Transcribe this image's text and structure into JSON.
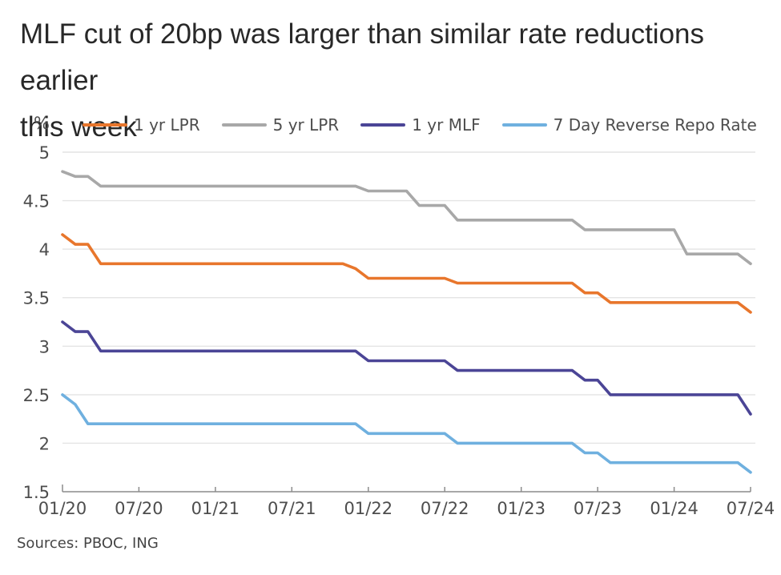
{
  "title": {
    "line1": "MLF cut of 20bp was larger than similar rate reductions earlier",
    "line2": "this week"
  },
  "source": "Sources: PBOC, ING",
  "chart_data": {
    "type": "line",
    "title": "MLF cut of 20bp was larger than similar rate reductions earlier this week",
    "ylabel": "%",
    "xlabel": "",
    "ylim": [
      1.5,
      5
    ],
    "yticks": [
      1.5,
      2,
      2.5,
      3,
      3.5,
      4,
      4.5,
      5
    ],
    "grid": "horizontal",
    "legend_position": "top",
    "x_frequency": "monthly",
    "x_start": "01/20",
    "x_end": "07/24",
    "xticks": [
      0,
      6,
      12,
      18,
      24,
      30,
      36,
      42,
      48,
      54
    ],
    "xtick_labels": [
      "01/20",
      "07/20",
      "01/21",
      "07/21",
      "01/22",
      "07/22",
      "01/23",
      "07/23",
      "01/24",
      "07/24"
    ],
    "colors": {
      "grid": "#e4e4e4",
      "axis": "#8c8c8c",
      "tick_text": "#4d4d4d"
    },
    "series": [
      {
        "id": "1yr-lpr",
        "name": "1 yr LPR",
        "color": "#e8762c",
        "values": [
          4.15,
          4.05,
          4.05,
          3.85,
          3.85,
          3.85,
          3.85,
          3.85,
          3.85,
          3.85,
          3.85,
          3.85,
          3.85,
          3.85,
          3.85,
          3.85,
          3.85,
          3.85,
          3.85,
          3.85,
          3.85,
          3.85,
          3.85,
          3.8,
          3.7,
          3.7,
          3.7,
          3.7,
          3.7,
          3.7,
          3.7,
          3.65,
          3.65,
          3.65,
          3.65,
          3.65,
          3.65,
          3.65,
          3.65,
          3.65,
          3.65,
          3.55,
          3.55,
          3.45,
          3.45,
          3.45,
          3.45,
          3.45,
          3.45,
          3.45,
          3.45,
          3.45,
          3.45,
          3.45,
          3.35
        ]
      },
      {
        "id": "5yr-lpr",
        "name": "5 yr LPR",
        "color": "#a8a8a8",
        "values": [
          4.8,
          4.75,
          4.75,
          4.65,
          4.65,
          4.65,
          4.65,
          4.65,
          4.65,
          4.65,
          4.65,
          4.65,
          4.65,
          4.65,
          4.65,
          4.65,
          4.65,
          4.65,
          4.65,
          4.65,
          4.65,
          4.65,
          4.65,
          4.65,
          4.6,
          4.6,
          4.6,
          4.6,
          4.45,
          4.45,
          4.45,
          4.3,
          4.3,
          4.3,
          4.3,
          4.3,
          4.3,
          4.3,
          4.3,
          4.3,
          4.3,
          4.2,
          4.2,
          4.2,
          4.2,
          4.2,
          4.2,
          4.2,
          4.2,
          3.95,
          3.95,
          3.95,
          3.95,
          3.95,
          3.85
        ]
      },
      {
        "id": "1yr-mlf",
        "name": "1 yr MLF",
        "color": "#4b4596",
        "values": [
          3.25,
          3.15,
          3.15,
          2.95,
          2.95,
          2.95,
          2.95,
          2.95,
          2.95,
          2.95,
          2.95,
          2.95,
          2.95,
          2.95,
          2.95,
          2.95,
          2.95,
          2.95,
          2.95,
          2.95,
          2.95,
          2.95,
          2.95,
          2.95,
          2.85,
          2.85,
          2.85,
          2.85,
          2.85,
          2.85,
          2.85,
          2.75,
          2.75,
          2.75,
          2.75,
          2.75,
          2.75,
          2.75,
          2.75,
          2.75,
          2.75,
          2.65,
          2.65,
          2.5,
          2.5,
          2.5,
          2.5,
          2.5,
          2.5,
          2.5,
          2.5,
          2.5,
          2.5,
          2.5,
          2.3
        ]
      },
      {
        "id": "7d-reverse-repo",
        "name": "7 Day Reverse Repo Rate",
        "color": "#6fb0df",
        "values": [
          2.5,
          2.4,
          2.2,
          2.2,
          2.2,
          2.2,
          2.2,
          2.2,
          2.2,
          2.2,
          2.2,
          2.2,
          2.2,
          2.2,
          2.2,
          2.2,
          2.2,
          2.2,
          2.2,
          2.2,
          2.2,
          2.2,
          2.2,
          2.2,
          2.1,
          2.1,
          2.1,
          2.1,
          2.1,
          2.1,
          2.1,
          2.0,
          2.0,
          2.0,
          2.0,
          2.0,
          2.0,
          2.0,
          2.0,
          2.0,
          2.0,
          1.9,
          1.9,
          1.8,
          1.8,
          1.8,
          1.8,
          1.8,
          1.8,
          1.8,
          1.8,
          1.8,
          1.8,
          1.8,
          1.7
        ]
      }
    ]
  }
}
